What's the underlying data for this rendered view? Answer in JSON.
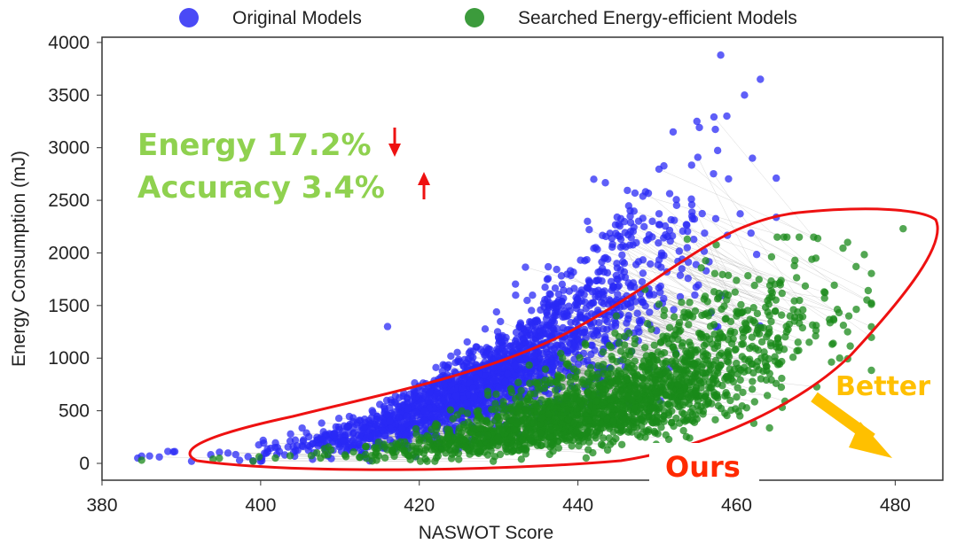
{
  "chart_data": {
    "type": "scatter",
    "xlabel": "NASWOT Score",
    "ylabel": "Energy Consumption (mJ)",
    "xlim": [
      380,
      486
    ],
    "ylim": [
      -160,
      4050
    ],
    "xticks": [
      380,
      400,
      420,
      440,
      460,
      480
    ],
    "yticks": [
      0,
      500,
      1000,
      1500,
      2000,
      2500,
      3000,
      3500,
      4000
    ],
    "grid": false,
    "legend_position": "top",
    "series": [
      {
        "name": "Original Models",
        "color": "#2a2af5"
      },
      {
        "name": "Searched Energy-efficient Models",
        "color": "#1a8a1a"
      }
    ],
    "sample_points": {
      "original": [
        [
          384.5,
          50
        ],
        [
          386,
          70
        ],
        [
          389,
          110
        ],
        [
          416,
          1300
        ],
        [
          442,
          2700
        ],
        [
          452,
          3150
        ],
        [
          455,
          3250
        ],
        [
          458,
          3880
        ],
        [
          461,
          3500
        ],
        [
          463,
          3650
        ],
        [
          462,
          2900
        ]
      ],
      "searched": [
        [
          385,
          30
        ],
        [
          394,
          40
        ],
        [
          420,
          200
        ],
        [
          440,
          600
        ],
        [
          460,
          1400
        ],
        [
          470,
          1950
        ],
        [
          474,
          2100
        ],
        [
          481,
          2230
        ],
        [
          474,
          1250
        ],
        [
          473,
          1000
        ]
      ]
    },
    "annotations": {
      "energy": "Energy 17.2%",
      "accuracy": "Accuracy 3.4%",
      "better": "Better",
      "ours": "Ours"
    }
  }
}
